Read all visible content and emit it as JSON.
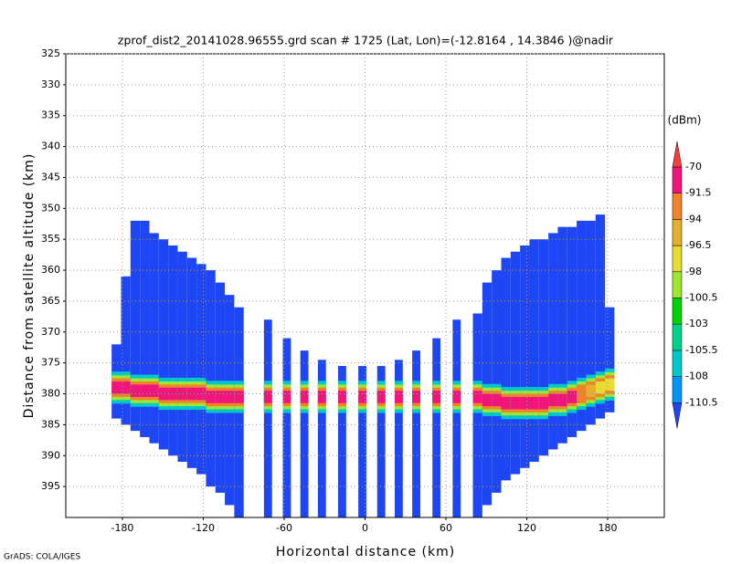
{
  "chart_data": {
    "type": "heatmap",
    "title": "zprof_dist2_20141028.96555.grd  scan # 1725  (Lat, Lon)=(-12.8164 , 14.3846 )@nadir",
    "xlabel": "Horizontal distance (km)",
    "ylabel": "Distance from satellite altitude (km)",
    "footer": "GrADS: COLA/IGES",
    "xlim": [
      -222,
      222
    ],
    "ylim": [
      325,
      400
    ],
    "y_inverted": true,
    "xticks": [
      -180,
      -120,
      -60,
      0,
      60,
      120,
      180
    ],
    "yticks": [
      325,
      330,
      335,
      340,
      345,
      350,
      355,
      360,
      365,
      370,
      375,
      380,
      385,
      390,
      395
    ],
    "grid": true,
    "colorbar": {
      "unit": "(dBm)",
      "levels": [
        -110.5,
        -108,
        -105.5,
        -103,
        -100.5,
        -98,
        -96.5,
        -94,
        -91.5,
        -70
      ],
      "colors": [
        "#1e46f5",
        "#0096f5",
        "#00c8c8",
        "#00d28c",
        "#00d200",
        "#a0e632",
        "#e6dc32",
        "#e6af2d",
        "#f08228",
        "#f0147d",
        "#fa3c3c"
      ]
    },
    "columns": {
      "x0": [
        -188,
        -181,
        -174,
        -167,
        -160,
        -153,
        -146,
        -139,
        -132,
        -125,
        -118,
        -111,
        -104,
        -97,
        -75,
        -61,
        -48,
        -35,
        -20,
        -5,
        9,
        22,
        35,
        50,
        65,
        80,
        87,
        94,
        101,
        108,
        115,
        122,
        129,
        136,
        143,
        150,
        157,
        164,
        171,
        178
      ],
      "x1": [
        -181,
        -174,
        -167,
        -160,
        -153,
        -146,
        -139,
        -132,
        -125,
        -118,
        -111,
        -104,
        -97,
        -90,
        -69,
        -55,
        -42,
        -29,
        -14,
        1,
        15,
        28,
        41,
        56,
        71,
        87,
        94,
        101,
        108,
        115,
        122,
        129,
        136,
        143,
        150,
        157,
        164,
        171,
        178,
        185
      ],
      "top": [
        372,
        361,
        352,
        352,
        354,
        355,
        356,
        357,
        358,
        359,
        360,
        362,
        364,
        366,
        368,
        371,
        373,
        374.5,
        375.5,
        375.5,
        375.5,
        374.5,
        373,
        371,
        368,
        367,
        362,
        360,
        358,
        357,
        356,
        355,
        355,
        354,
        353,
        353,
        352,
        352,
        351,
        366
      ],
      "bottom": [
        384,
        385,
        386,
        387,
        388,
        389,
        390,
        391,
        392,
        393,
        395,
        396,
        398,
        400,
        400,
        400,
        400,
        400,
        400,
        400,
        400,
        400,
        400,
        400,
        400,
        400,
        398,
        396,
        394,
        393,
        392,
        391,
        390,
        389,
        388,
        387,
        386,
        385,
        384,
        383
      ],
      "band": [
        379,
        379,
        379.5,
        379.5,
        379.5,
        380,
        380,
        380,
        380,
        380,
        380.5,
        380.5,
        380.5,
        380.5,
        380.5,
        380.5,
        380.5,
        380.5,
        380.5,
        380.5,
        380.5,
        380.5,
        380.5,
        380.5,
        380.5,
        380.5,
        381,
        381,
        381.5,
        381.5,
        381.5,
        381.5,
        381.5,
        381,
        381,
        380.5,
        380,
        379.5,
        379,
        378.5
      ],
      "peak": [
        -91.5,
        -91.5,
        -91.5,
        -91.5,
        -91.5,
        -91.5,
        -91.5,
        -91.5,
        -91.5,
        -91.5,
        -91.5,
        -91.5,
        -91.5,
        -91.5,
        -91.5,
        -91.5,
        -91.5,
        -91.5,
        -91.5,
        -91.5,
        -91.5,
        -91.5,
        -91.5,
        -91.5,
        -91.5,
        -91.5,
        -91.5,
        -91.5,
        -91.5,
        -91.5,
        -91.5,
        -91.5,
        -91.5,
        -91.5,
        -91.5,
        -91.5,
        -94,
        -96.5,
        -98,
        -98
      ]
    }
  }
}
